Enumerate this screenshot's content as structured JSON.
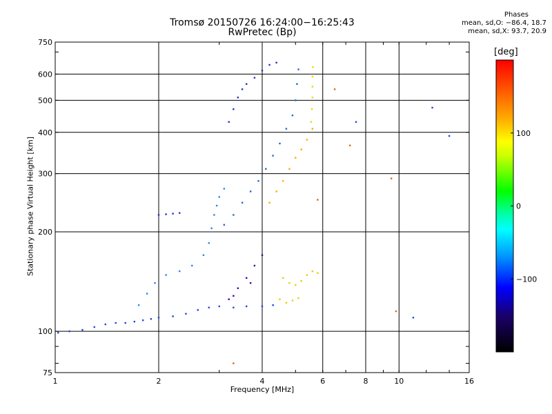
{
  "chart_data": {
    "type": "scatter",
    "title": "Tromsø 20150726 16:24:00−16:25:43",
    "subtitle": "RwPretec (Bp)",
    "xlabel": "Frequency [MHz]",
    "ylabel": "Stationary phase Virtual Height [km]",
    "x_scale": "log",
    "y_scale": "log",
    "xlim": [
      1,
      16
    ],
    "ylim": [
      75,
      750
    ],
    "x_ticks": [
      1,
      2,
      4,
      6,
      8,
      10,
      16
    ],
    "y_ticks": [
      75,
      100,
      200,
      300,
      400,
      500,
      600,
      750
    ],
    "x_gridlines": [
      2,
      4,
      6,
      8,
      10
    ],
    "y_gridlines": [
      100,
      200,
      300,
      400,
      500,
      600
    ],
    "phases": {
      "title": "Phases",
      "line_o": "mean, sd,O: −86.4, 18.7",
      "line_x": "mean, sd,X:  93.7, 20.9"
    },
    "colorbar": {
      "label": "[deg]",
      "tick_labels": [
        "100",
        "0",
        "−100"
      ],
      "ticks": [
        100,
        0,
        -100
      ],
      "range": [
        -200,
        200
      ],
      "colors": [
        "#ff0000",
        "#ffff00",
        "#00ff00",
        "#00ffff",
        "#0000ff",
        "#000000"
      ]
    },
    "series": [
      {
        "color": "#2244dd",
        "points": [
          [
            1.02,
            99
          ],
          [
            1.1,
            100
          ],
          [
            1.2,
            101
          ],
          [
            1.3,
            103
          ],
          [
            1.4,
            105
          ],
          [
            1.5,
            106
          ],
          [
            1.6,
            106
          ],
          [
            1.7,
            107
          ],
          [
            1.8,
            108
          ],
          [
            1.9,
            109
          ],
          [
            2.0,
            110
          ],
          [
            2.2,
            111
          ],
          [
            2.4,
            113
          ],
          [
            2.6,
            116
          ],
          [
            2.8,
            118
          ],
          [
            3.0,
            119
          ],
          [
            3.3,
            118
          ],
          [
            3.6,
            119
          ],
          [
            4.0,
            119
          ],
          [
            4.3,
            120
          ]
        ]
      },
      {
        "color": "#2288ee",
        "points": [
          [
            1.75,
            120
          ],
          [
            1.85,
            130
          ],
          [
            1.95,
            140
          ],
          [
            2.1,
            148
          ],
          [
            2.3,
            152
          ],
          [
            2.5,
            158
          ],
          [
            2.7,
            170
          ],
          [
            2.8,
            185
          ],
          [
            2.85,
            205
          ],
          [
            2.9,
            225
          ],
          [
            2.95,
            240
          ],
          [
            3.0,
            255
          ],
          [
            3.1,
            270
          ]
        ]
      },
      {
        "color": "#2233cc",
        "points": [
          [
            2.0,
            225
          ],
          [
            2.1,
            226
          ],
          [
            2.2,
            227
          ],
          [
            2.3,
            228
          ]
        ]
      },
      {
        "color": "#2266cc",
        "points": [
          [
            3.1,
            210
          ],
          [
            3.3,
            225
          ],
          [
            3.5,
            245
          ],
          [
            3.7,
            265
          ],
          [
            3.9,
            285
          ],
          [
            4.1,
            310
          ],
          [
            4.3,
            340
          ],
          [
            4.5,
            370
          ],
          [
            4.7,
            410
          ],
          [
            4.9,
            450
          ],
          [
            5.0,
            500
          ],
          [
            5.05,
            560
          ],
          [
            5.1,
            620
          ]
        ]
      },
      {
        "color": "#2233bb",
        "points": [
          [
            3.2,
            430
          ],
          [
            3.3,
            470
          ],
          [
            3.4,
            510
          ],
          [
            3.5,
            540
          ],
          [
            3.6,
            560
          ],
          [
            3.8,
            585
          ],
          [
            4.0,
            615
          ],
          [
            4.2,
            640
          ],
          [
            4.4,
            650
          ]
        ]
      },
      {
        "color": "#ffaa00",
        "points": [
          [
            4.2,
            245
          ],
          [
            4.4,
            265
          ],
          [
            4.6,
            285
          ],
          [
            4.8,
            310
          ],
          [
            5.0,
            335
          ],
          [
            5.2,
            355
          ],
          [
            5.4,
            380
          ],
          [
            5.6,
            410
          ]
        ]
      },
      {
        "color": "#dddd00",
        "points": [
          [
            5.55,
            430
          ],
          [
            5.58,
            470
          ],
          [
            5.6,
            510
          ],
          [
            5.6,
            550
          ],
          [
            5.6,
            590
          ],
          [
            5.62,
            630
          ]
        ]
      },
      {
        "color": "#eecc00",
        "points": [
          [
            4.6,
            145
          ],
          [
            4.8,
            140
          ],
          [
            5.0,
            138
          ],
          [
            5.2,
            142
          ],
          [
            5.4,
            148
          ],
          [
            5.6,
            152
          ],
          [
            5.8,
            150
          ],
          [
            4.5,
            125
          ],
          [
            4.7,
            122
          ],
          [
            4.9,
            124
          ],
          [
            5.1,
            126
          ]
        ]
      },
      {
        "color": "#4400aa",
        "points": [
          [
            3.2,
            125
          ],
          [
            3.4,
            135
          ],
          [
            3.6,
            145
          ],
          [
            3.8,
            158
          ],
          [
            4.0,
            170
          ],
          [
            3.3,
            128
          ],
          [
            3.7,
            140
          ]
        ]
      },
      {
        "color": "#dd6600",
        "points": [
          [
            6.5,
            540
          ],
          [
            7.2,
            365
          ],
          [
            9.5,
            290
          ],
          [
            9.8,
            115
          ],
          [
            5.8,
            250
          ],
          [
            3.3,
            80
          ]
        ]
      },
      {
        "color": "#2244dd",
        "points": [
          [
            12.5,
            475
          ],
          [
            14.0,
            390
          ],
          [
            11.0,
            110
          ],
          [
            7.5,
            430
          ]
        ]
      }
    ]
  }
}
